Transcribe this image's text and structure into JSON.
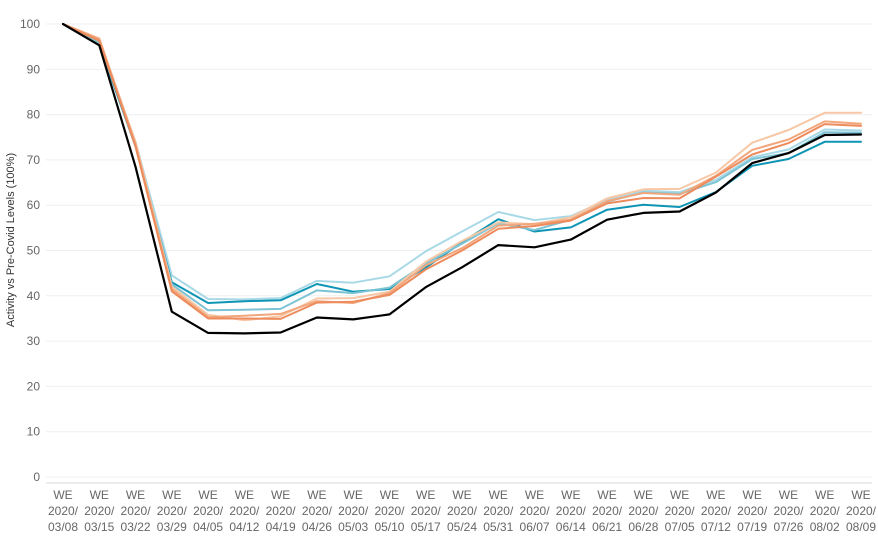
{
  "chart_data": {
    "type": "line",
    "title": "",
    "xlabel": "",
    "ylabel": "Activity vs Pre-Covid Levels (100%)",
    "ylim": [
      0,
      100
    ],
    "yticks": [
      0,
      10,
      20,
      30,
      40,
      50,
      60,
      70,
      80,
      90,
      100
    ],
    "grid": "horizontal",
    "legend": "none",
    "categories": [
      {
        "top": "WE",
        "bottom": "2020/ 03/08"
      },
      {
        "top": "WE",
        "bottom": "2020/ 03/15"
      },
      {
        "top": "WE",
        "bottom": "2020/ 03/22"
      },
      {
        "top": "WE",
        "bottom": "2020/ 03/29"
      },
      {
        "top": "WE",
        "bottom": "2020/ 04/05"
      },
      {
        "top": "WE",
        "bottom": "2020/ 04/12"
      },
      {
        "top": "WE",
        "bottom": "2020/ 04/19"
      },
      {
        "top": "WE",
        "bottom": "2020/ 04/26"
      },
      {
        "top": "WE",
        "bottom": "2020/ 05/03"
      },
      {
        "top": "WE",
        "bottom": "2020/ 05/10"
      },
      {
        "top": "WE",
        "bottom": "2020/ 05/17"
      },
      {
        "top": "WE",
        "bottom": "2020/ 05/24"
      },
      {
        "top": "WE",
        "bottom": "2020/ 05/31"
      },
      {
        "top": "WE",
        "bottom": "2020/ 06/07"
      },
      {
        "top": "WE",
        "bottom": "2020/ 06/14"
      },
      {
        "top": "WE",
        "bottom": "2020/ 06/21"
      },
      {
        "top": "WE",
        "bottom": "2020/ 06/28"
      },
      {
        "top": "WE",
        "bottom": "2020/ 07/05"
      },
      {
        "top": "WE",
        "bottom": "2020/ 07/12"
      },
      {
        "top": "WE",
        "bottom": "2020/ 07/19"
      },
      {
        "top": "WE",
        "bottom": "2020/ 07/26"
      },
      {
        "top": "WE",
        "bottom": "2020/ 08/02"
      },
      {
        "top": "WE",
        "bottom": "2020/ 08/09"
      }
    ],
    "series": [
      {
        "color": "#a9d9e6",
        "values": [
          100,
          96,
          74,
          44.5,
          39.3,
          39.2,
          39.5,
          43.3,
          42.9,
          44.3,
          49.8,
          54.2,
          58.5,
          56.7,
          57.6,
          61.2,
          63.2,
          62.9,
          65.6,
          70.6,
          72.3,
          76.7,
          76.5
        ]
      },
      {
        "color": "#0e95b5",
        "values": [
          100,
          95.5,
          73,
          43,
          38.4,
          38.8,
          39,
          42.6,
          40.9,
          41.5,
          46.2,
          51.8,
          56.9,
          54.2,
          55.1,
          59,
          60.1,
          59.6,
          62.9,
          68.7,
          70.2,
          74,
          74
        ]
      },
      {
        "color": "#7cc3d4",
        "values": [
          100,
          95.8,
          73.5,
          42.5,
          36.8,
          36.9,
          37.1,
          41.2,
          40.6,
          41.8,
          47.1,
          51.5,
          56,
          54.5,
          56.8,
          60.8,
          62.8,
          62.5,
          65.1,
          70.2,
          71.5,
          76.1,
          76
        ]
      },
      {
        "color": "#f7c7a6",
        "values": [
          100,
          96.5,
          74,
          42,
          35.8,
          34.6,
          35.5,
          39.4,
          39.5,
          40.9,
          47.5,
          52.1,
          56.2,
          55.8,
          57.3,
          61.5,
          63.5,
          63.6,
          67.2,
          73.8,
          76.6,
          80.4,
          80.4
        ]
      },
      {
        "color": "#f2a67c",
        "values": [
          100,
          96.8,
          73.5,
          41.5,
          35.3,
          35.6,
          36,
          38.8,
          38.4,
          40.6,
          46.7,
          50.5,
          55.5,
          55.9,
          56.8,
          60.9,
          62.7,
          62.3,
          66.5,
          72.2,
          74.5,
          78.5,
          78
        ]
      },
      {
        "color": "#ed8b5c",
        "values": [
          100,
          96.3,
          73,
          41,
          35,
          35,
          34.9,
          38.5,
          38.7,
          40.2,
          45.8,
          50,
          54.8,
          55.4,
          56.6,
          60.4,
          61.6,
          61.5,
          66.3,
          71.2,
          73.7,
          77.9,
          77.5
        ]
      },
      {
        "color": "#000000",
        "values": [
          100,
          95.3,
          68.5,
          36.5,
          31.8,
          31.7,
          31.9,
          35.2,
          34.8,
          35.9,
          41.9,
          46.3,
          51.2,
          50.7,
          52.4,
          56.8,
          58.3,
          58.6,
          62.8,
          69.3,
          71.5,
          75.5,
          75.6
        ]
      }
    ]
  }
}
